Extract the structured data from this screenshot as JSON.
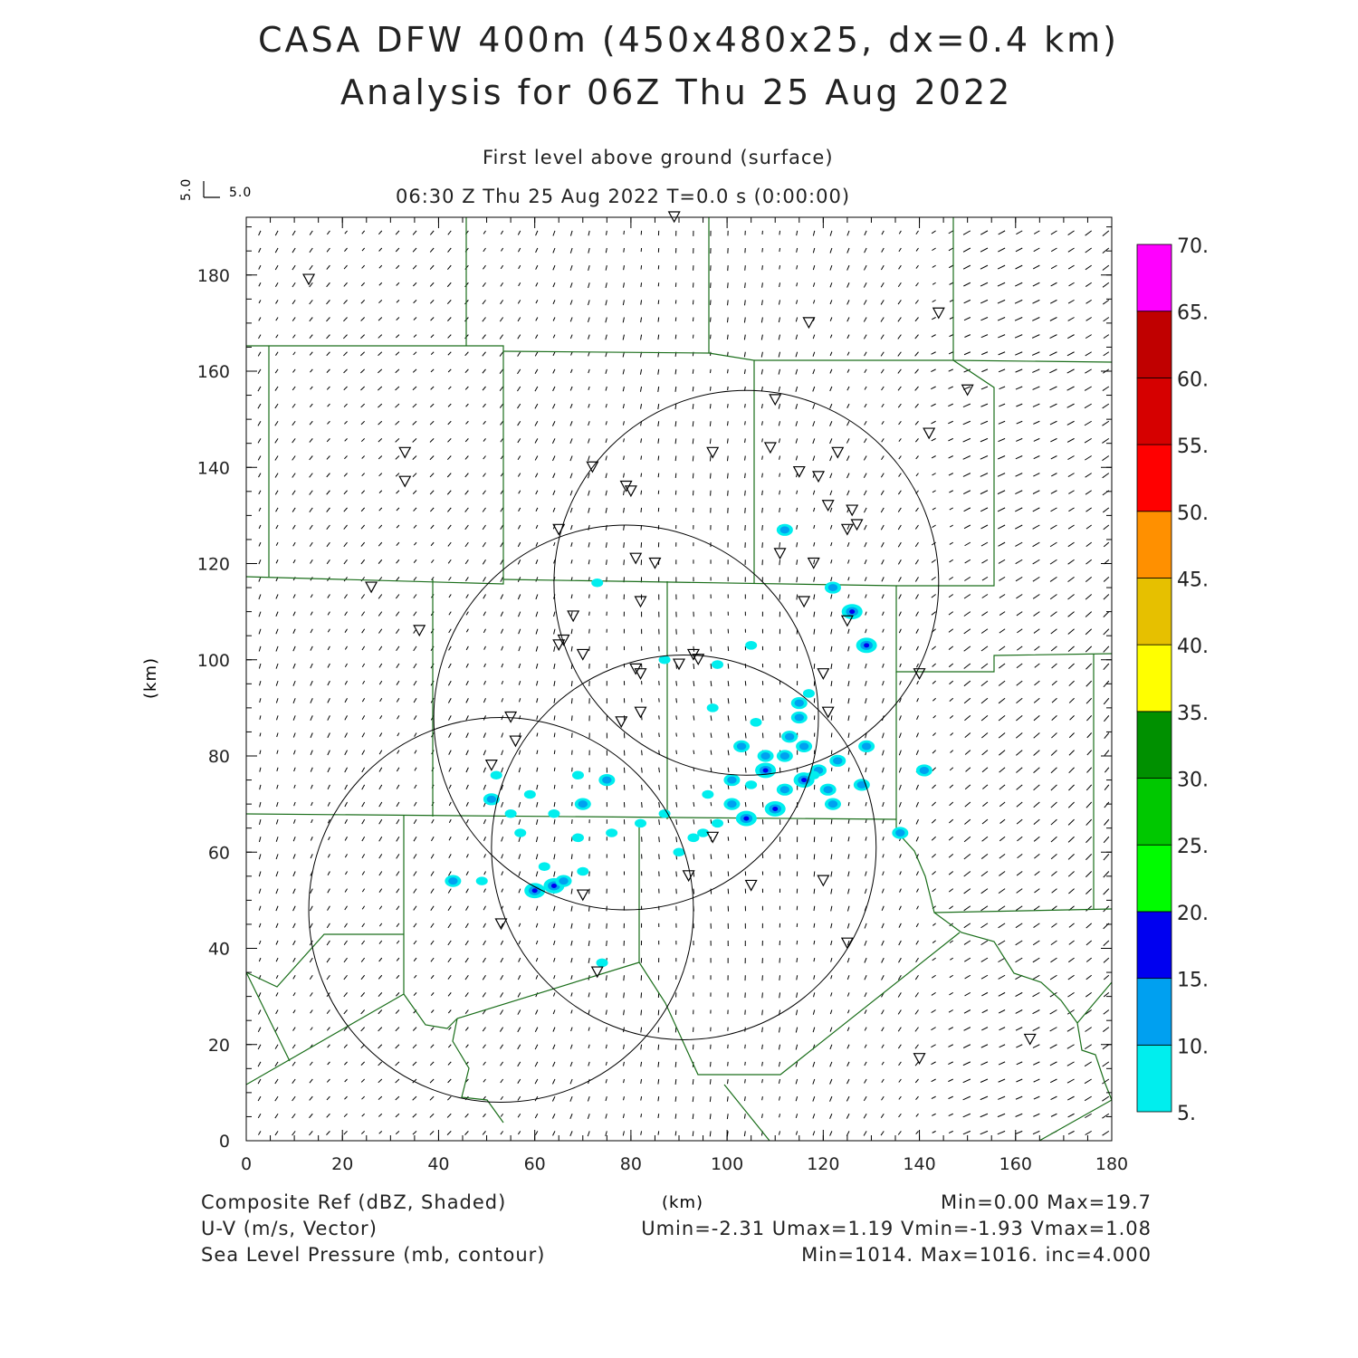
{
  "title": {
    "line1": "CASA DFW 400m (450x480x25, dx=0.4 km)",
    "line2": "Analysis for 06Z Thu 25 Aug 2022"
  },
  "subtitle": {
    "level": "First level above ground (surface)",
    "time": "06:30 Z Thu 25 Aug 2022   T=0.0 s (0:00:00)"
  },
  "vector_key": {
    "u_label": "5.0",
    "v_label": "5.0"
  },
  "chart_data": {
    "type": "map",
    "xlabel": "(km)",
    "ylabel": "(km)",
    "xlim": [
      0,
      180
    ],
    "ylim": [
      0,
      192
    ],
    "xticks": [
      "0",
      "20",
      "40",
      "60",
      "80",
      "100",
      "120",
      "140",
      "160",
      "180"
    ],
    "yticks": [
      "0",
      "20",
      "40",
      "60",
      "80",
      "100",
      "120",
      "140",
      "160",
      "180"
    ],
    "colorbar": {
      "labels": [
        "5.",
        "10.",
        "15.",
        "20.",
        "25.",
        "30.",
        "35.",
        "40.",
        "45.",
        "50.",
        "55.",
        "60.",
        "65.",
        "70."
      ],
      "colors": [
        "#00eeee",
        "#00a0f0",
        "#0000f0",
        "#00fc00",
        "#00c800",
        "#009000",
        "#ffff00",
        "#e6c000",
        "#ff9000",
        "#ff0000",
        "#d60000",
        "#c00000",
        "#ff00ff"
      ]
    },
    "radar_rings": [
      {
        "center": [
          104,
          116
        ],
        "radius": 40
      },
      {
        "center": [
          79,
          88
        ],
        "radius": 40
      },
      {
        "center": [
          91,
          61
        ],
        "radius": 40
      },
      {
        "center": [
          53,
          48
        ],
        "radius": 40
      }
    ],
    "station_markers": [
      [
        13,
        179
      ],
      [
        89,
        192
      ],
      [
        117,
        170
      ],
      [
        144,
        172
      ],
      [
        150,
        156
      ],
      [
        142,
        147
      ],
      [
        33,
        143
      ],
      [
        33,
        137
      ],
      [
        110,
        154
      ],
      [
        97,
        143
      ],
      [
        109,
        144
      ],
      [
        115,
        139
      ],
      [
        119,
        138
      ],
      [
        123,
        143
      ],
      [
        72,
        140
      ],
      [
        79,
        136
      ],
      [
        80,
        135
      ],
      [
        121,
        132
      ],
      [
        126,
        131
      ],
      [
        127,
        128
      ],
      [
        125,
        127
      ],
      [
        65,
        127
      ],
      [
        81,
        121
      ],
      [
        85,
        120
      ],
      [
        111,
        122
      ],
      [
        118,
        120
      ],
      [
        26,
        115
      ],
      [
        36,
        106
      ],
      [
        68,
        109
      ],
      [
        82,
        112
      ],
      [
        116,
        112
      ],
      [
        66,
        104
      ],
      [
        65,
        103
      ],
      [
        70,
        101
      ],
      [
        125,
        108
      ],
      [
        93,
        101
      ],
      [
        94,
        100
      ],
      [
        90,
        99
      ],
      [
        81,
        98
      ],
      [
        82,
        97
      ],
      [
        120,
        97
      ],
      [
        140,
        97
      ],
      [
        82,
        89
      ],
      [
        78,
        87
      ],
      [
        121,
        89
      ],
      [
        55,
        88
      ],
      [
        56,
        83
      ],
      [
        51,
        78
      ],
      [
        97,
        63
      ],
      [
        92,
        55
      ],
      [
        120,
        54
      ],
      [
        105,
        53
      ],
      [
        70,
        51
      ],
      [
        53,
        45
      ],
      [
        125,
        41
      ],
      [
        73,
        35
      ],
      [
        140,
        17
      ],
      [
        163,
        21
      ]
    ],
    "reflectivity_cells": [
      [
        112,
        127,
        2
      ],
      [
        122,
        115,
        2
      ],
      [
        126,
        110,
        3
      ],
      [
        129,
        103,
        3
      ],
      [
        73,
        116,
        1
      ],
      [
        105,
        103,
        1
      ],
      [
        87,
        100,
        1
      ],
      [
        98,
        99,
        1
      ],
      [
        117,
        93,
        1
      ],
      [
        97,
        90,
        1
      ],
      [
        115,
        91,
        2
      ],
      [
        106,
        87,
        1
      ],
      [
        115,
        88,
        2
      ],
      [
        113,
        84,
        2
      ],
      [
        103,
        82,
        2
      ],
      [
        108,
        80,
        2
      ],
      [
        112,
        80,
        2
      ],
      [
        116,
        82,
        2
      ],
      [
        123,
        79,
        2
      ],
      [
        129,
        82,
        2
      ],
      [
        101,
        75,
        2
      ],
      [
        105,
        74,
        1
      ],
      [
        108,
        77,
        3
      ],
      [
        116,
        75,
        3
      ],
      [
        119,
        77,
        2
      ],
      [
        112,
        73,
        2
      ],
      [
        121,
        73,
        2
      ],
      [
        128,
        74,
        2
      ],
      [
        104,
        67,
        3
      ],
      [
        101,
        70,
        2
      ],
      [
        110,
        69,
        3
      ],
      [
        98,
        66,
        1
      ],
      [
        95,
        64,
        1
      ],
      [
        136,
        64,
        2
      ],
      [
        141,
        77,
        2
      ],
      [
        122,
        70,
        2
      ],
      [
        52,
        76,
        1
      ],
      [
        69,
        76,
        1
      ],
      [
        75,
        75,
        2
      ],
      [
        51,
        71,
        2
      ],
      [
        55,
        68,
        1
      ],
      [
        70,
        70,
        2
      ],
      [
        59,
        72,
        1
      ],
      [
        64,
        68,
        1
      ],
      [
        76,
        64,
        1
      ],
      [
        62,
        57,
        1
      ],
      [
        60,
        52,
        3
      ],
      [
        64,
        53,
        3
      ],
      [
        66,
        54,
        2
      ],
      [
        70,
        56,
        1
      ],
      [
        43,
        54,
        2
      ],
      [
        49,
        54,
        1
      ],
      [
        74,
        37,
        1
      ],
      [
        93,
        63,
        1
      ],
      [
        82,
        66,
        1
      ],
      [
        87,
        68,
        1
      ],
      [
        69,
        63,
        1
      ],
      [
        57,
        64,
        1
      ],
      [
        90,
        60,
        1
      ],
      [
        96,
        72,
        1
      ],
      [
        118,
        76,
        1
      ]
    ],
    "legend": [
      "Composite Ref (dBZ, Shaded)",
      "U-V (m/s, Vector)",
      "Sea Level Pressure (mb, contour)"
    ]
  },
  "footer": {
    "ref_label": "Composite Ref (dBZ, Shaded)",
    "vec_label": "U-V (m/s, Vector)",
    "slp_label": "Sea Level Pressure (mb, contour)",
    "x_unit": "(km)",
    "ref_stats": "Min=0.00 Max=19.7",
    "vec_stats": "Umin=-2.31 Umax=1.19 Vmin=-1.93 Vmax=1.08",
    "slp_stats": "Min=1014. Max=1016. inc=4.000"
  }
}
